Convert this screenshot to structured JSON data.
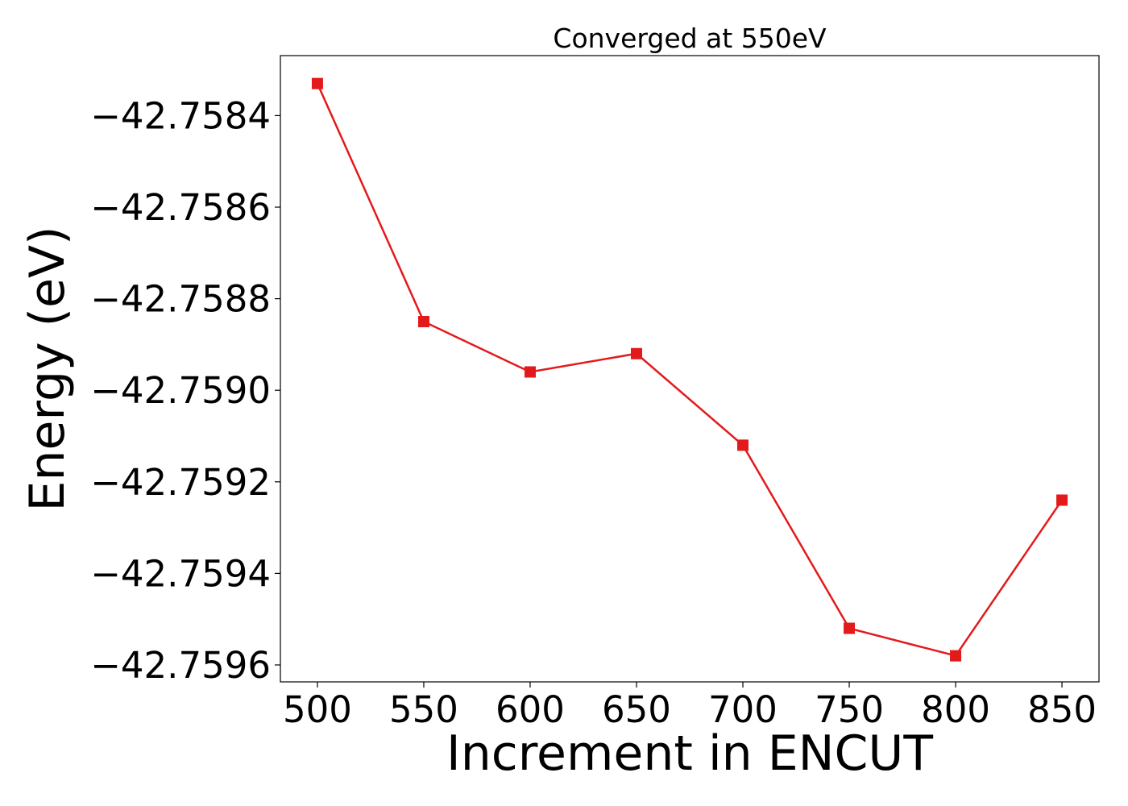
{
  "chart_data": {
    "type": "line",
    "title": "Converged at 550eV",
    "xlabel": "Increment in ENCUT",
    "ylabel": "Energy (eV)",
    "x": [
      500,
      550,
      600,
      650,
      700,
      750,
      800,
      850
    ],
    "series": [
      {
        "values": [
          -42.75833,
          -42.75885,
          -42.75896,
          -42.75892,
          -42.75912,
          -42.75952,
          -42.75958,
          -42.75924
        ],
        "color": "#e31a1c",
        "marker": "square"
      }
    ],
    "x_ticks": [
      500,
      550,
      600,
      650,
      700,
      750,
      800,
      850
    ],
    "x_tick_labels": [
      "500",
      "550",
      "600",
      "650",
      "700",
      "750",
      "800",
      "850"
    ],
    "y_ticks": [
      -42.7584,
      -42.7586,
      -42.7588,
      -42.759,
      -42.7592,
      -42.7594,
      -42.7596
    ],
    "y_tick_labels": [
      "−42.7584",
      "−42.7586",
      "−42.7588",
      "−42.7590",
      "−42.7592",
      "−42.7594",
      "−42.7596"
    ],
    "xlim": [
      482.6,
      867.4
    ],
    "ylim": [
      -42.759637,
      -42.758269
    ],
    "grid": false,
    "legend": false
  }
}
